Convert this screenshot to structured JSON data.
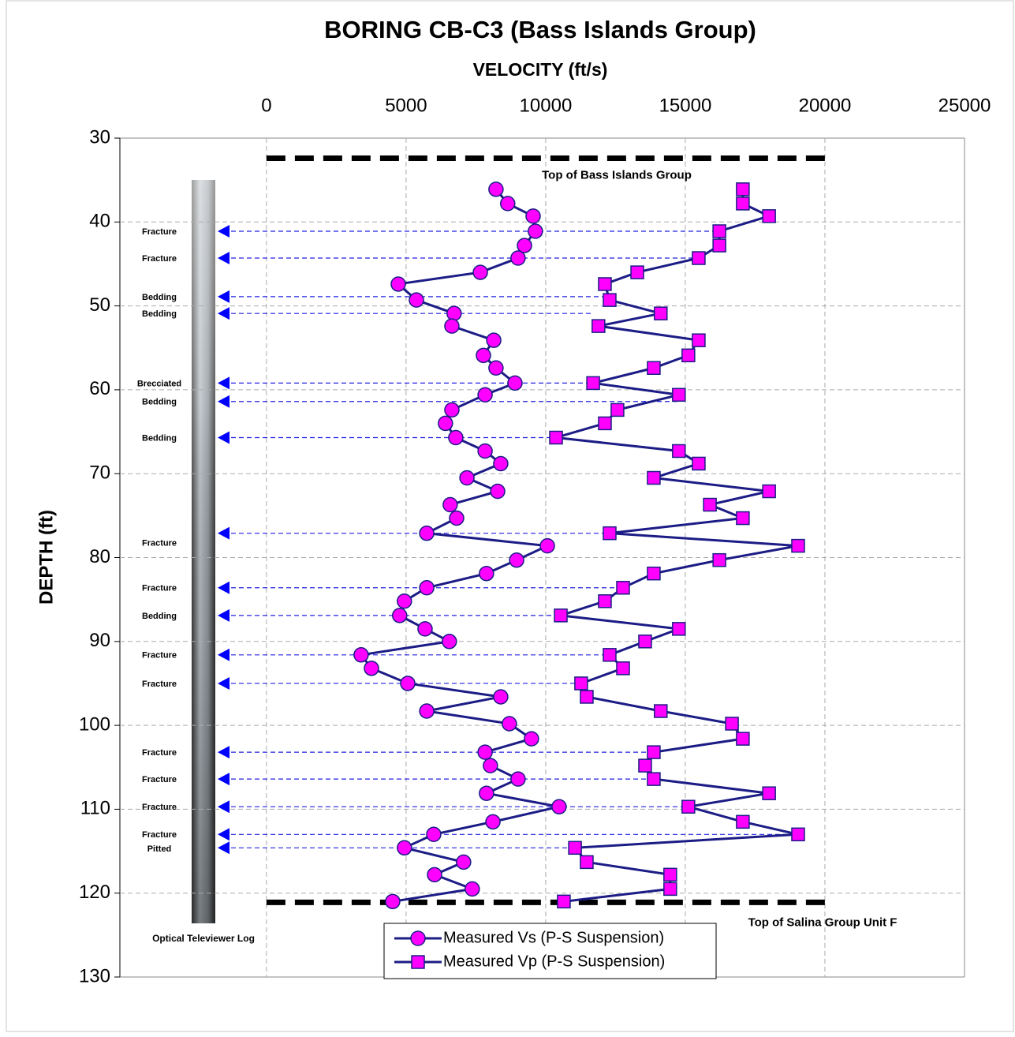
{
  "chart_data": {
    "type": "scatter",
    "title": "BORING CB-C3 (Bass Islands Group)",
    "x_label": "VELOCITY (ft/s)",
    "y_label": "DEPTH (ft)",
    "xlim": [
      -5250,
      25000
    ],
    "xticks": [
      0,
      5000,
      10000,
      15000,
      20000,
      25000
    ],
    "ylim": [
      30,
      130
    ],
    "y_reversed": true,
    "yticks": [
      30,
      40,
      50,
      60,
      70,
      80,
      90,
      100,
      110,
      120,
      130
    ],
    "grid": true,
    "line_color": "#1c1c86",
    "log_label": "Optical Televiewer Log",
    "series": [
      {
        "name": "Measured Vs (P-S Suspension)",
        "color": "#ff00ff",
        "marker": "circle",
        "x": [
          8220,
          8640,
          9550,
          9630,
          9240,
          9010,
          7660,
          4720,
          5370,
          6720,
          6640,
          8140,
          7770,
          8220,
          8900,
          7830,
          6640,
          6410,
          6780,
          7830,
          8390,
          7180,
          8280,
          6580,
          6810,
          5740,
          10060,
          8960,
          7880,
          5740,
          4940,
          4770,
          5680,
          6550,
          3390,
          3760,
          5060,
          8390,
          5740,
          8700,
          9490,
          7830,
          8020,
          9010,
          7880,
          10480,
          8110,
          5990,
          4940,
          7060,
          6020,
          7370,
          4520
        ],
        "y": [
          36.1,
          37.8,
          39.3,
          41.1,
          42.8,
          44.3,
          46.0,
          47.4,
          49.3,
          50.9,
          52.4,
          54.1,
          55.9,
          57.4,
          59.2,
          60.6,
          62.4,
          64.0,
          65.7,
          67.3,
          68.8,
          70.5,
          72.1,
          73.7,
          75.3,
          77.1,
          78.6,
          80.3,
          81.9,
          83.6,
          85.2,
          86.9,
          88.5,
          90.0,
          91.6,
          93.2,
          95.0,
          96.6,
          98.3,
          99.8,
          101.6,
          103.2,
          104.8,
          106.4,
          108.1,
          109.7,
          111.5,
          113.0,
          114.6,
          116.3,
          117.8,
          119.5,
          121.0
        ]
      },
      {
        "name": "Measured Vp (P-S Suspension)",
        "color": "#ff00ff",
        "marker": "square",
        "x": [
          17060,
          17060,
          18000,
          16220,
          16220,
          15480,
          13280,
          12120,
          12290,
          14120,
          11890,
          15480,
          15110,
          13870,
          11700,
          14770,
          12570,
          12120,
          10370,
          14770,
          15480,
          13870,
          18000,
          15880,
          17060,
          12290,
          19040,
          16220,
          13870,
          12770,
          12120,
          10540,
          14770,
          13560,
          12290,
          12770,
          11270,
          11470,
          14120,
          16670,
          17060,
          13870,
          13560,
          13870,
          18000,
          15110,
          17060,
          19040,
          11050,
          11470,
          14460,
          14460,
          10650
        ],
        "y": [
          36.1,
          37.8,
          39.3,
          41.1,
          42.8,
          44.3,
          46.0,
          47.4,
          49.3,
          50.9,
          52.4,
          54.1,
          55.9,
          57.4,
          59.2,
          60.6,
          62.4,
          64.0,
          65.7,
          67.3,
          68.8,
          70.5,
          72.1,
          73.7,
          75.3,
          77.1,
          78.6,
          80.3,
          81.9,
          83.6,
          85.2,
          86.9,
          88.5,
          90.0,
          91.6,
          93.2,
          95.0,
          96.6,
          98.3,
          99.8,
          101.6,
          103.2,
          104.8,
          106.4,
          108.1,
          109.7,
          111.5,
          113.0,
          114.6,
          116.3,
          117.8,
          119.5,
          121.0
        ]
      }
    ],
    "boundaries": [
      {
        "text": "Top of Bass Islands Group",
        "depth": 32.4,
        "x": [
          0,
          20000
        ]
      },
      {
        "text": "Top of Salina Group Unit F",
        "depth": 121.1,
        "x": [
          0,
          20000
        ]
      }
    ],
    "features": [
      {
        "text": "Fracture",
        "depth": 41.1,
        "x": [
          -1550,
          16220
        ]
      },
      {
        "text": "Fracture",
        "depth": 44.3,
        "x": [
          -1550,
          15480
        ]
      },
      {
        "text": "Bedding",
        "depth": 48.9,
        "x": [
          -1550,
          12260
        ]
      },
      {
        "text": "Bedding",
        "depth": 50.9,
        "x": [
          -1550,
          11670
        ]
      },
      {
        "text": "Brecciated",
        "depth": 59.2,
        "x": [
          -1550,
          11700
        ]
      },
      {
        "text": "Bedding",
        "depth": 61.4,
        "x": [
          -1550,
          14770
        ]
      },
      {
        "text": "Bedding",
        "depth": 65.7,
        "x": [
          -1550,
          10370
        ]
      },
      {
        "text": "Fracture",
        "depth": 77.1,
        "x": [
          -1550,
          12290
        ]
      },
      {
        "text": "Fracture",
        "depth": 83.6,
        "x": [
          -1550,
          12770
        ]
      },
      {
        "text": "Bedding",
        "depth": 86.9,
        "x": [
          -1550,
          10540
        ]
      },
      {
        "text": "Fracture",
        "depth": 91.6,
        "x": [
          -1550,
          12290
        ]
      },
      {
        "text": "Fracture",
        "depth": 95.0,
        "x": [
          -1550,
          11270
        ]
      },
      {
        "text": "Fracture",
        "depth": 103.2,
        "x": [
          -1550,
          13870
        ]
      },
      {
        "text": "Fracture",
        "depth": 106.4,
        "x": [
          -1550,
          13870
        ]
      },
      {
        "text": "Fracture",
        "depth": 109.7,
        "x": [
          -1550,
          15110
        ]
      },
      {
        "text": "Fracture",
        "depth": 113.0,
        "x": [
          -1550,
          19040
        ]
      },
      {
        "text": "Pitted",
        "depth": 114.6,
        "x": [
          -1550,
          11050
        ]
      }
    ]
  }
}
